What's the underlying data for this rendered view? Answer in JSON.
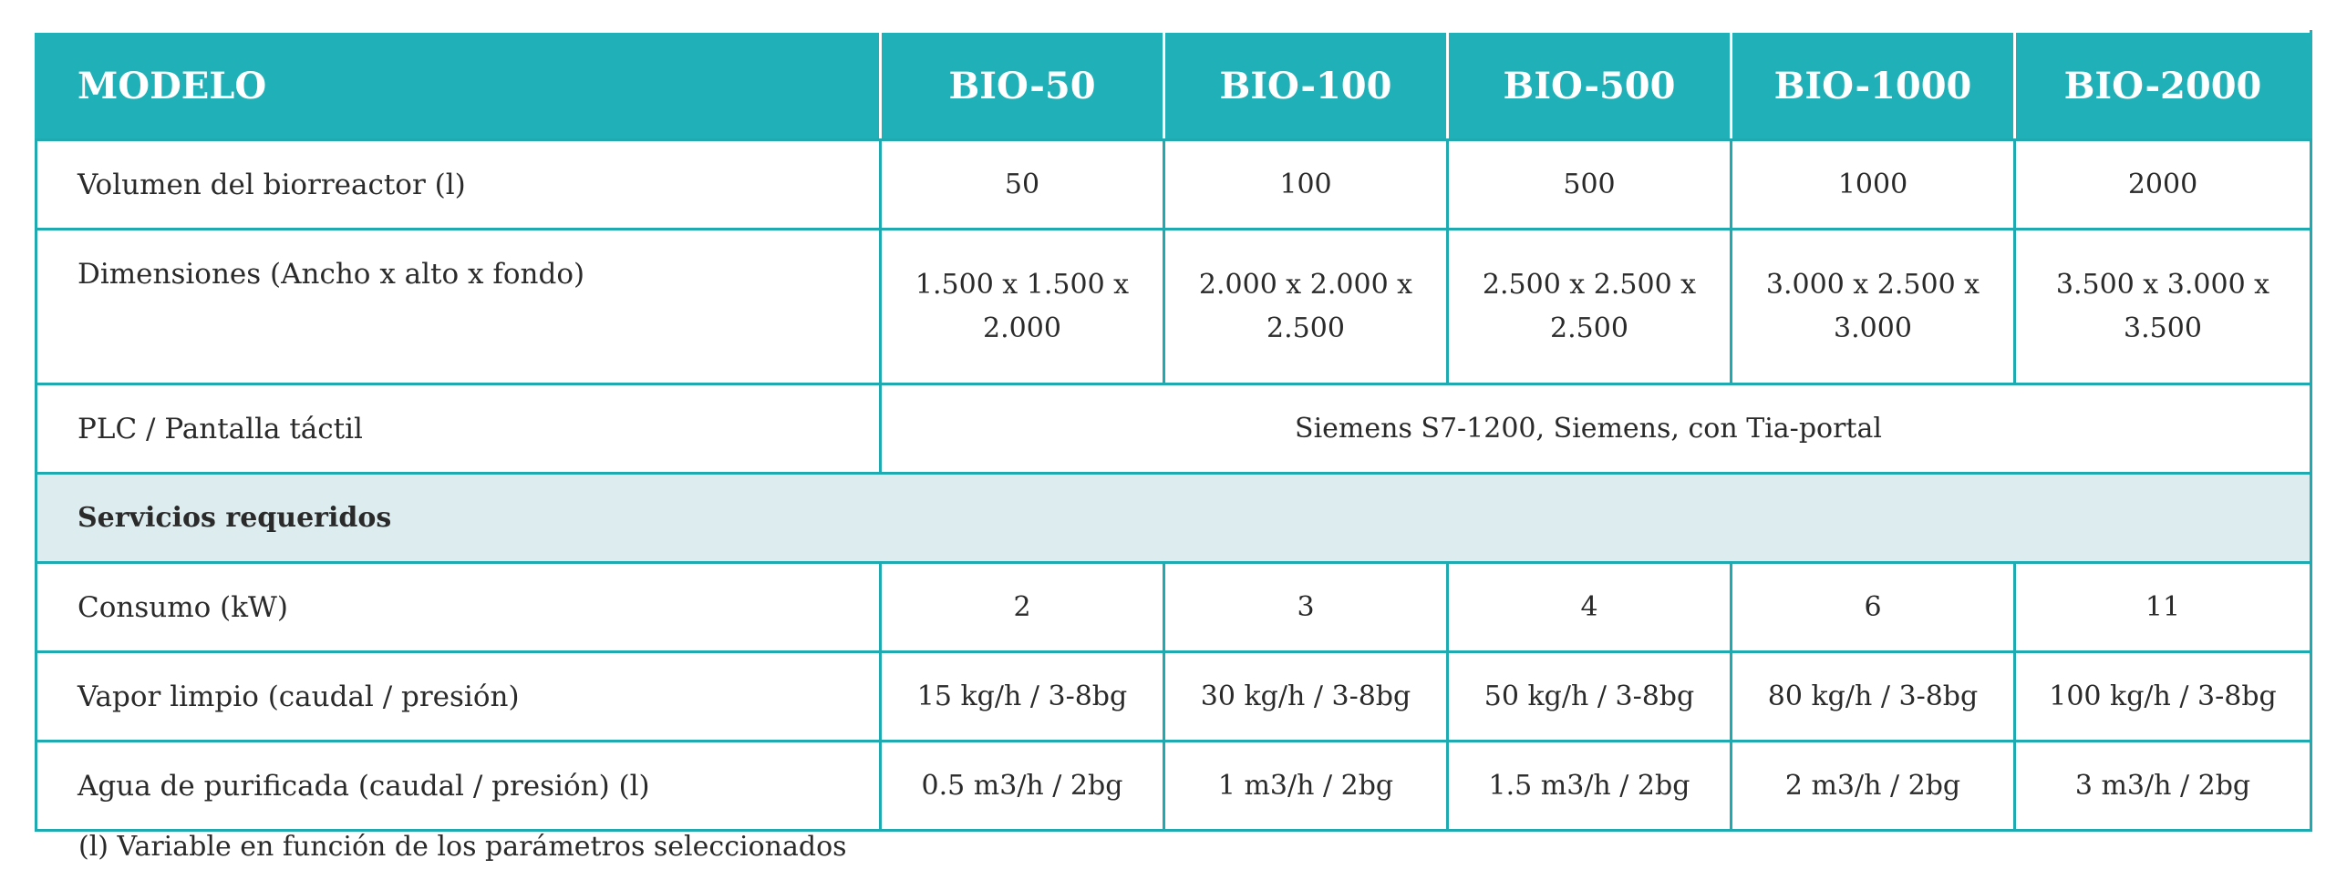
{
  "table": {
    "header": {
      "label": "MODELO",
      "models": [
        "BIO-50",
        "BIO-100",
        "BIO-500",
        "BIO-1000",
        "BIO-2000"
      ]
    },
    "rows": {
      "volumen": {
        "label": "Volumen del biorreactor (l)",
        "values": [
          "50",
          "100",
          "500",
          "1000",
          "2000"
        ]
      },
      "dimensiones": {
        "label": "Dimensiones (Ancho x alto x fondo)",
        "values": [
          [
            "1.500 x 1.500 x",
            "2.000"
          ],
          [
            "2.000 x 2.000 x",
            "2.500"
          ],
          [
            "2.500 x 2.500 x",
            "2.500"
          ],
          [
            "3.000 x 2.500 x",
            "3.000"
          ],
          [
            "3.500 x 3.000 x",
            "3.500"
          ]
        ]
      },
      "plc": {
        "label": "PLC / Pantalla táctil",
        "value": "Siemens S7-1200, Siemens, con Tia-portal"
      },
      "servicios": {
        "label": "Servicios requeridos"
      },
      "consumo": {
        "label": "Consumo (kW)",
        "values": [
          "2",
          "3",
          "4",
          "6",
          "11"
        ]
      },
      "vapor": {
        "label": "Vapor limpio (caudal / presión)",
        "values": [
          "15 kg/h / 3-8bg",
          "30 kg/h / 3-8bg",
          "50 kg/h / 3-8bg",
          "80 kg/h / 3-8bg",
          "100 kg/h / 3-8bg"
        ]
      },
      "agua": {
        "label": "Agua de purificada (caudal / presión) (l)",
        "values": [
          "0.5 m3/h / 2bg",
          "1 m3/h / 2bg",
          "1.5 m3/h / 2bg",
          "2 m3/h / 2bg",
          "3 m3/h / 2bg"
        ]
      }
    }
  },
  "footnote": "(l) Variable en función de los parámetros seleccionados",
  "colors": {
    "header_bg": "#1fb1b7",
    "border": "#1fa9b0",
    "section_bg": "#dcecef"
  }
}
